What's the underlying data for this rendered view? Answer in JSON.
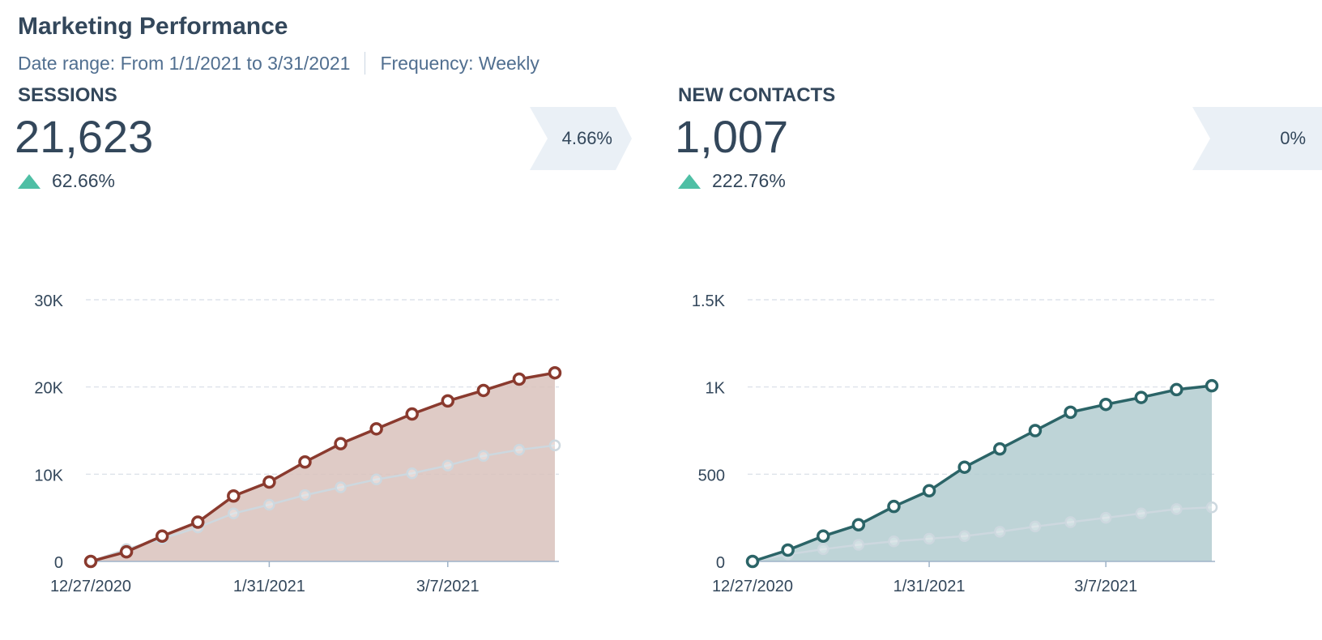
{
  "header": {
    "title": "Marketing Performance",
    "date_range": "Date range: From 1/1/2021 to 3/31/2021",
    "frequency": "Frequency: Weekly"
  },
  "panels": [
    {
      "label": "SESSIONS",
      "value": "21,623",
      "change": "62.66%",
      "flag": "4.66%"
    },
    {
      "label": "NEW CONTACTS",
      "value": "1,007",
      "change": "222.76%",
      "flag": "0%"
    }
  ],
  "colors": {
    "sessions_line": "#8a3a2e",
    "sessions_fill": "#d9c2bc",
    "contacts_line": "#2b6467",
    "contacts_fill": "#b3ccd0",
    "comparison_line": "#cdd8df",
    "up_arrow": "#4fbfa5",
    "grid": "#d8dee6",
    "axis": "#9fb3c8"
  },
  "chart_data": [
    {
      "type": "area",
      "x": [
        "12/27/2020",
        "1/3/2021",
        "1/10/2021",
        "1/17/2021",
        "1/24/2021",
        "1/31/2021",
        "2/7/2021",
        "2/14/2021",
        "2/21/2021",
        "2/28/2021",
        "3/7/2021",
        "3/14/2021",
        "3/21/2021",
        "3/28/2021"
      ],
      "xticks": [
        "12/27/2020",
        "1/31/2021",
        "3/7/2021"
      ],
      "yticks": [
        "0",
        "10K",
        "20K",
        "30K"
      ],
      "ylim": [
        0,
        30000
      ],
      "series": [
        {
          "role": "current",
          "values": [
            0,
            1100,
            2900,
            4500,
            7500,
            9100,
            11400,
            13500,
            15200,
            16900,
            18400,
            19600,
            20900,
            21623
          ]
        },
        {
          "role": "comparison",
          "values": [
            0,
            1400,
            2600,
            3900,
            5500,
            6500,
            7600,
            8500,
            9400,
            10100,
            11000,
            12100,
            12800,
            13300
          ]
        }
      ]
    },
    {
      "type": "area",
      "x": [
        "12/27/2020",
        "1/3/2021",
        "1/10/2021",
        "1/17/2021",
        "1/24/2021",
        "1/31/2021",
        "2/7/2021",
        "2/14/2021",
        "2/21/2021",
        "2/28/2021",
        "3/7/2021",
        "3/14/2021",
        "3/21/2021",
        "3/28/2021"
      ],
      "xticks": [
        "12/27/2020",
        "1/31/2021",
        "3/7/2021"
      ],
      "yticks": [
        "0",
        "500",
        "1K",
        "1.5K"
      ],
      "ylim": [
        0,
        1500
      ],
      "series": [
        {
          "role": "current",
          "values": [
            0,
            65,
            145,
            210,
            315,
            405,
            540,
            645,
            750,
            855,
            900,
            940,
            985,
            1007
          ]
        },
        {
          "role": "comparison",
          "values": [
            0,
            40,
            70,
            95,
            115,
            130,
            145,
            170,
            200,
            225,
            250,
            275,
            300,
            310
          ]
        }
      ]
    }
  ]
}
